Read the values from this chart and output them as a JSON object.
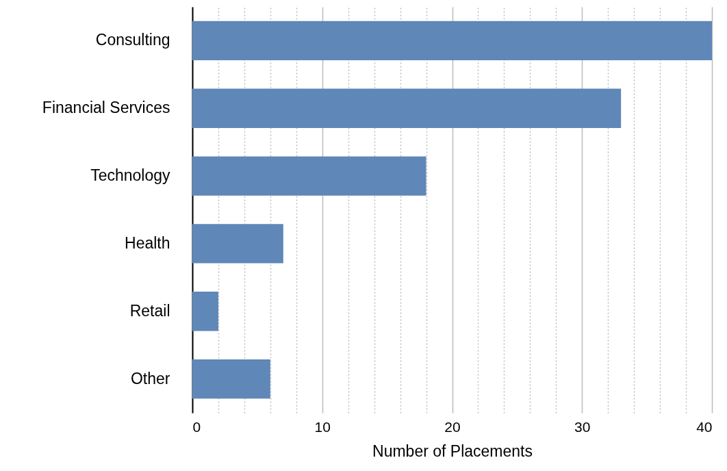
{
  "chart_data": {
    "type": "bar",
    "orientation": "horizontal",
    "xlabel": "Number of Placements",
    "categories": [
      "Consulting",
      "Financial Services",
      "Technology",
      "Health",
      "Retail",
      "Other"
    ],
    "values": [
      40,
      33,
      18,
      7,
      2,
      6
    ],
    "color": "#5f87b8",
    "xlim": [
      0,
      40
    ],
    "xticks": [
      0,
      {
        "value": 2,
        "label": null
      },
      {
        "value": 4,
        "label": null
      },
      {
        "value": 6,
        "label": null
      },
      {
        "value": 8,
        "label": null
      },
      10,
      {
        "value": 12,
        "label": null
      },
      {
        "value": 14,
        "label": null
      },
      {
        "value": 16,
        "label": null
      },
      {
        "value": 18,
        "label": null
      },
      20,
      {
        "value": 22,
        "label": null
      },
      {
        "value": 24,
        "label": null
      },
      {
        "value": 26,
        "label": null
      },
      {
        "value": 28,
        "label": null
      },
      30,
      {
        "value": 32,
        "label": null
      },
      {
        "value": 34,
        "label": null
      },
      {
        "value": 36,
        "label": null
      },
      {
        "value": 38,
        "label": null
      },
      40
    ],
    "grid": "x"
  }
}
